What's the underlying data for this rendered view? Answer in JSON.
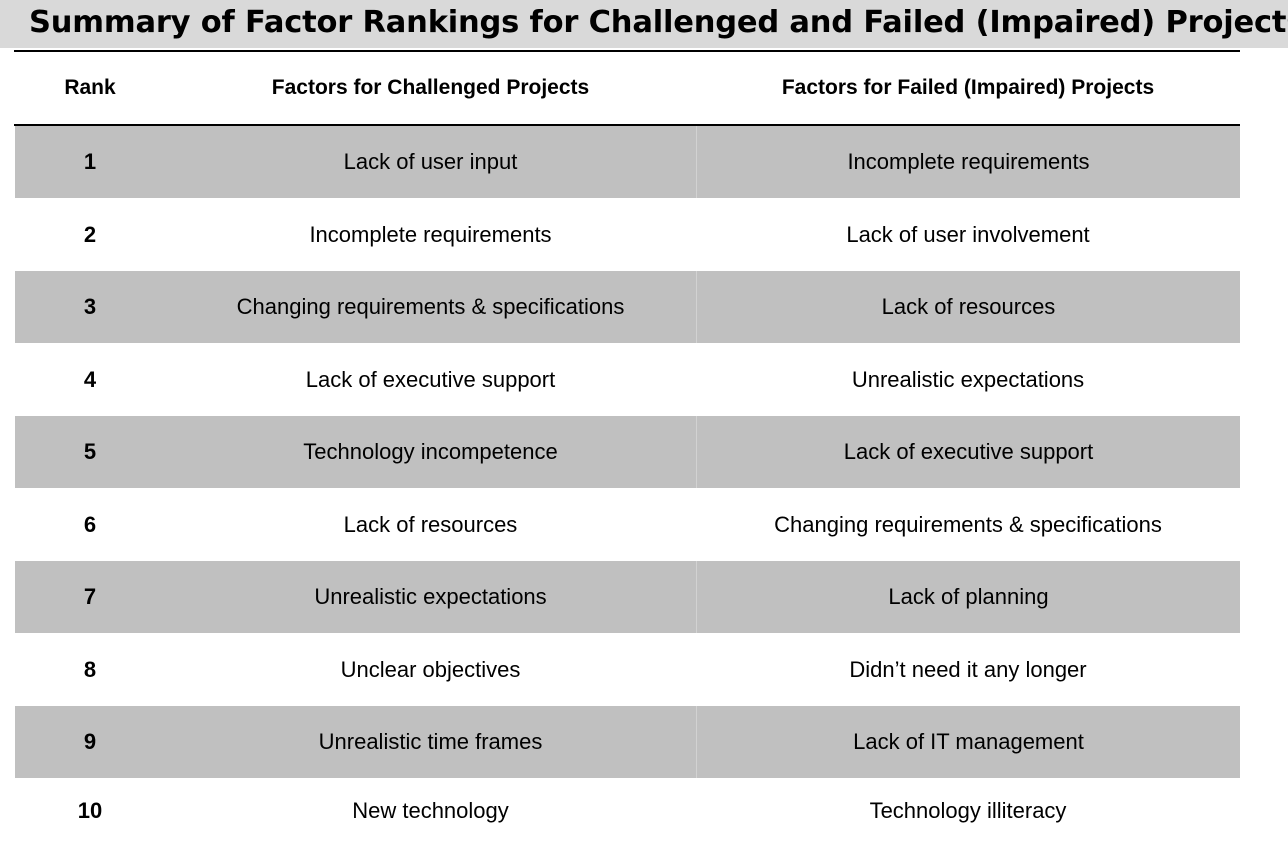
{
  "title": "Summary of Factor Rankings for Challenged and Failed (Impaired) Projects",
  "table": {
    "headers": [
      "Rank",
      "Factors for Challenged Projects",
      "Factors for Failed (Impaired) Projects"
    ],
    "rows": [
      [
        "1",
        "Lack of user input",
        "Incomplete requirements"
      ],
      [
        "2",
        "Incomplete requirements",
        "Lack of user involvement"
      ],
      [
        "3",
        "Changing requirements & specifications",
        "Lack of resources"
      ],
      [
        "4",
        "Lack of executive support",
        "Unrealistic expectations"
      ],
      [
        "5",
        "Technology incompetence",
        "Lack of executive support"
      ],
      [
        "6",
        "Lack of resources",
        "Changing requirements & specifications"
      ],
      [
        "7",
        "Unrealistic expectations",
        "Lack of planning"
      ],
      [
        "8",
        "Unclear objectives",
        "Didn’t need it any longer"
      ],
      [
        "9",
        "Unrealistic time frames",
        "Lack of IT management"
      ],
      [
        "10",
        "New technology",
        "Technology illiteracy"
      ]
    ]
  },
  "colors": {
    "title_background": "#d9d9d9",
    "shaded_row": "#c0c0c0",
    "rule": "#000000"
  }
}
